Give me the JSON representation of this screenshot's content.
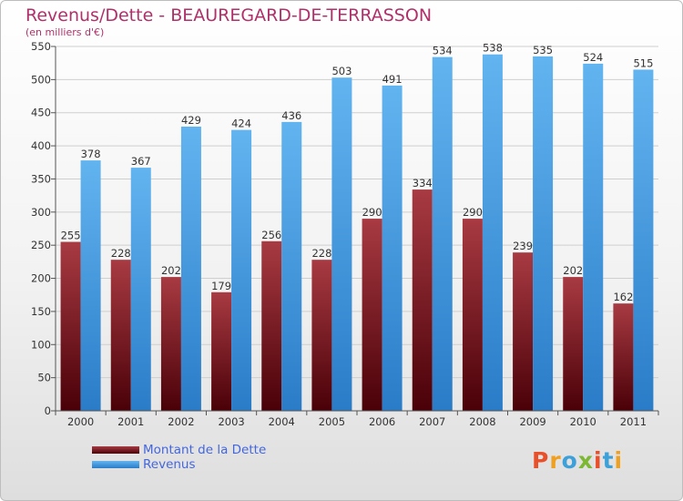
{
  "chart_data": {
    "type": "bar",
    "title": "Revenus/Dette - BEAUREGARD-DE-TERRASSON",
    "subtitle": "(en milliers d'€)",
    "categories": [
      "2000",
      "2001",
      "2002",
      "2003",
      "2004",
      "2005",
      "2006",
      "2007",
      "2008",
      "2009",
      "2010",
      "2011"
    ],
    "series": [
      {
        "name": "Montant de la Dette",
        "color": "#7a1f26",
        "values": [
          255,
          228,
          202,
          179,
          256,
          228,
          290,
          334,
          290,
          239,
          202,
          162
        ]
      },
      {
        "name": "Revenus",
        "color": "#5aaae8",
        "values": [
          378,
          367,
          429,
          424,
          436,
          503,
          491,
          534,
          538,
          535,
          524,
          515
        ]
      }
    ],
    "ylim": [
      0,
      550
    ],
    "yticks": [
      0,
      50,
      100,
      150,
      200,
      250,
      300,
      350,
      400,
      450,
      500,
      550
    ],
    "grid": true,
    "legend_position": "bottom-left"
  },
  "logo": {
    "text": "Proxiti",
    "colors": [
      "#e8502a",
      "#f0a020",
      "#3da0d8",
      "#7cb832",
      "#e8502a",
      "#3da0d8",
      "#f0a020"
    ]
  }
}
